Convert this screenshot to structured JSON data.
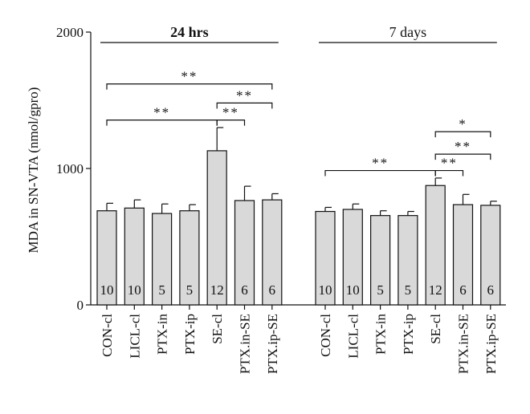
{
  "chart_data": {
    "type": "bar",
    "ylabel": "MDA in SN-VTA (nmol/gpro)",
    "ylim": [
      0,
      2000
    ],
    "yticks": [
      0,
      1000,
      2000
    ],
    "ytick_labels": [
      "0",
      "1000",
      "2000"
    ],
    "bar_color": "#d9d9d9",
    "groups": [
      {
        "label": "24 hrs",
        "categories": [
          "CON-cl",
          "LICL-cl",
          "PTX-in",
          "PTX-ip",
          "SE-cl",
          "PTX.in-SE",
          "PTX.ip-SE"
        ],
        "values": [
          690,
          710,
          670,
          690,
          1130,
          765,
          770
        ],
        "errors": [
          55,
          60,
          70,
          45,
          170,
          105,
          45
        ],
        "n": [
          "10",
          "10",
          "5",
          "5",
          "12",
          "6",
          "6"
        ],
        "comparisons": [
          {
            "from": 0,
            "to": 6,
            "label": "**",
            "y": 1620
          },
          {
            "from": 4,
            "to": 6,
            "label": "**",
            "y": 1480
          },
          {
            "from": 0,
            "to": 4,
            "label": "**",
            "y": 1355
          },
          {
            "from": 4,
            "to": 5,
            "label": "**",
            "y": 1355
          }
        ]
      },
      {
        "label": "7 days",
        "categories": [
          "CON-cl",
          "LICL-cl",
          "PTX-in",
          "PTX-ip",
          "SE-cl",
          "PTX.in-SE",
          "PTX.ip-SE"
        ],
        "values": [
          685,
          700,
          655,
          655,
          875,
          735,
          730
        ],
        "errors": [
          30,
          40,
          35,
          30,
          55,
          75,
          30
        ],
        "n": [
          "10",
          "10",
          "5",
          "5",
          "12",
          "6",
          "6"
        ],
        "comparisons": [
          {
            "from": 4,
            "to": 6,
            "label": "*",
            "y": 1270
          },
          {
            "from": 4,
            "to": 6,
            "label": "**",
            "y": 1105
          },
          {
            "from": 0,
            "to": 4,
            "label": "**",
            "y": 985
          },
          {
            "from": 4,
            "to": 5,
            "label": "**",
            "y": 985
          }
        ]
      }
    ]
  }
}
